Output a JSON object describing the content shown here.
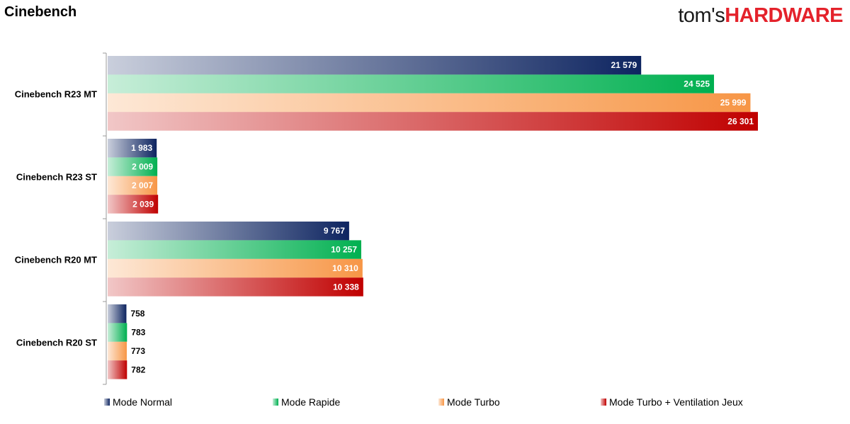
{
  "header": {
    "title": "Cinebench",
    "logo_part1": "tom's",
    "logo_part2": "HARDWARE"
  },
  "chart_data": {
    "type": "bar",
    "orientation": "horizontal",
    "title": "Cinebench",
    "categories": [
      "Cinebench R23 MT",
      "Cinebench R23 ST",
      "Cinebench R20 MT",
      "Cinebench R20 ST"
    ],
    "series": [
      {
        "name": "Mode Normal",
        "color": "#0d2460",
        "values": [
          21579,
          1983,
          9767,
          758
        ],
        "labels": [
          "21 579",
          "1 983",
          "9 767",
          "758"
        ]
      },
      {
        "name": "Mode Rapide",
        "color": "#00b050",
        "values": [
          24525,
          2009,
          10257,
          783
        ],
        "labels": [
          "24 525",
          "2 009",
          "10 257",
          "783"
        ]
      },
      {
        "name": "Mode Turbo",
        "color": "#f79646",
        "values": [
          25999,
          2007,
          10310,
          773
        ],
        "labels": [
          "25 999",
          "2 007",
          "10 310",
          "773"
        ]
      },
      {
        "name": "Mode Turbo + Ventilation Jeux",
        "color": "#c00000",
        "values": [
          26301,
          2039,
          10338,
          782
        ],
        "labels": [
          "26 301",
          "2 039",
          "10 338",
          "782"
        ]
      }
    ],
    "xlim": [
      0,
      30000
    ],
    "grid": false,
    "legend_position": "bottom"
  }
}
